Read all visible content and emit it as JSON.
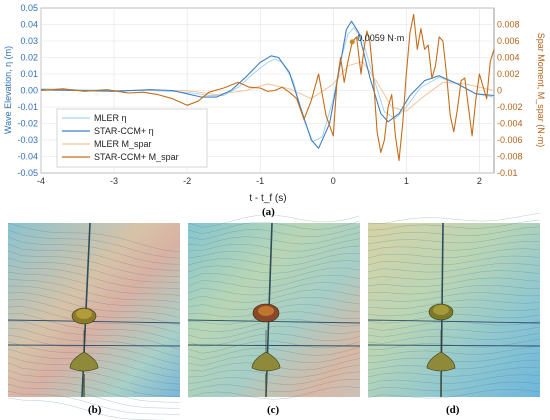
{
  "panel_labels": {
    "a": "(a)",
    "b": "(b)",
    "c": "(c)",
    "d": "(d)"
  },
  "chart_data": {
    "type": "line",
    "xlabel": "t - t_f (s)",
    "ylabel_left": "Wave Elevation, η (m)",
    "ylabel_right": "Spar Moment, M_spar (N·m)",
    "xlim": [
      -4,
      2.2
    ],
    "ylim_left": [
      -0.05,
      0.05
    ],
    "ylim_right": [
      -0.01,
      0.01
    ],
    "xticks": [
      -4,
      -3,
      -2,
      -1,
      0,
      1,
      2
    ],
    "yticks_left": [
      -0.05,
      -0.04,
      -0.03,
      -0.02,
      -0.01,
      0,
      0.01,
      0.02,
      0.03,
      0.04,
      0.05
    ],
    "yticks_right": [
      -0.01,
      -0.008,
      -0.006,
      -0.004,
      -0.002,
      0,
      0.002,
      0.004,
      0.006,
      0.008
    ],
    "grid": true,
    "legend_position": "lower-left",
    "annotation": {
      "text": "0.0059 N·m",
      "x": 0.26,
      "y_right": 0.0059
    },
    "series": [
      {
        "name": "MLER η",
        "axis": "left",
        "color": "#a9d3ee",
        "x": [
          -4,
          -3.5,
          -3,
          -2.5,
          -2,
          -1.7,
          -1.5,
          -1.3,
          -1.1,
          -0.9,
          -0.8,
          -0.7,
          -0.55,
          -0.4,
          -0.28,
          -0.15,
          0,
          0.1,
          0.2,
          0.28,
          0.4,
          0.55,
          0.7,
          0.85,
          1.0,
          1.2,
          1.45,
          1.7,
          1.95,
          2.2
        ],
        "y": [
          0.001,
          0.0005,
          0,
          0,
          -0.001,
          -0.003,
          -0.003,
          0.002,
          0.01,
          0.017,
          0.019,
          0.017,
          0.006,
          -0.018,
          -0.031,
          -0.028,
          -0.005,
          0.018,
          0.034,
          0.038,
          0.031,
          0.008,
          -0.013,
          -0.017,
          -0.01,
          0.002,
          0.008,
          0.004,
          -0.002,
          -0.004
        ]
      },
      {
        "name": "STAR-CCM+ η",
        "axis": "left",
        "color": "#3f7fc4",
        "x": [
          -4,
          -3.5,
          -3,
          -2.5,
          -2.2,
          -2,
          -1.8,
          -1.6,
          -1.4,
          -1.2,
          -1.0,
          -0.85,
          -0.75,
          -0.6,
          -0.45,
          -0.3,
          -0.2,
          -0.05,
          0.08,
          0.18,
          0.25,
          0.35,
          0.5,
          0.65,
          0.75,
          0.9,
          1.05,
          1.25,
          1.45,
          1.7,
          1.95,
          2.2
        ],
        "y": [
          0.0005,
          0,
          -0.0005,
          0.0005,
          0,
          -0.002,
          -0.004,
          -0.004,
          0,
          0.008,
          0.017,
          0.021,
          0.02,
          0.011,
          -0.01,
          -0.03,
          -0.035,
          -0.02,
          0.012,
          0.037,
          0.042,
          0.035,
          0.008,
          -0.014,
          -0.019,
          -0.014,
          -0.003,
          0.006,
          0.009,
          0.004,
          -0.002,
          -0.003
        ]
      },
      {
        "name": "MLER M_spar",
        "axis": "right",
        "color": "#f3c59a",
        "x": [
          -4,
          -3,
          -2,
          -1.6,
          -1.2,
          -0.9,
          -0.6,
          -0.3,
          0,
          0.2,
          0.4,
          0.6,
          0.8,
          1.0,
          1.2,
          1.5,
          1.8,
          2.2
        ],
        "y": [
          0,
          0,
          0,
          -0.0005,
          0,
          0.0008,
          0.0002,
          -0.001,
          0.0008,
          0.003,
          0.0035,
          0.001,
          -0.002,
          -0.0025,
          -0.001,
          0.001,
          0.0008,
          0
        ]
      },
      {
        "name": "STAR-CCM+ M_spar",
        "axis": "right",
        "color": "#c46d1b",
        "x": [
          -4,
          -3.7,
          -3.4,
          -3.1,
          -2.8,
          -2.6,
          -2.4,
          -2.2,
          -2.0,
          -1.85,
          -1.7,
          -1.5,
          -1.3,
          -1.15,
          -1.0,
          -0.9,
          -0.8,
          -0.7,
          -0.6,
          -0.5,
          -0.4,
          -0.3,
          -0.2,
          -0.1,
          0,
          0.05,
          0.1,
          0.15,
          0.2,
          0.26,
          0.32,
          0.38,
          0.42,
          0.46,
          0.5,
          0.55,
          0.6,
          0.65,
          0.7,
          0.75,
          0.8,
          0.85,
          0.9,
          0.95,
          1.0,
          1.05,
          1.1,
          1.15,
          1.2,
          1.25,
          1.3,
          1.35,
          1.4,
          1.45,
          1.5,
          1.55,
          1.6,
          1.65,
          1.7,
          1.75,
          1.8,
          1.85,
          1.9,
          1.95,
          2.0,
          2.05,
          2.1,
          2.15,
          2.2
        ],
        "y": [
          0,
          0.0002,
          -0.0001,
          0.0001,
          -0.0003,
          -0.0002,
          -0.0005,
          -0.001,
          -0.0018,
          -0.0013,
          -0.0002,
          0.0003,
          0.001,
          0.0004,
          0.0003,
          -0.0001,
          0,
          0.0004,
          -0.0002,
          -0.001,
          -0.0035,
          -0.0012,
          0.002,
          -0.003,
          -0.0055,
          0.001,
          0.004,
          0.001,
          0.0035,
          0.0059,
          0.0065,
          0.002,
          0.005,
          0.0072,
          0.006,
          0.0015,
          -0.005,
          -0.0075,
          -0.006,
          -0.002,
          -0.0005,
          -0.0055,
          -0.0085,
          -0.004,
          0.002,
          0.007,
          0.0092,
          0.005,
          0.0075,
          0.005,
          0.0055,
          0.0015,
          0.003,
          0.0065,
          0.006,
          0.002,
          -0.003,
          -0.005,
          -0.0022,
          0.0012,
          0.0015,
          -0.002,
          -0.0055,
          -0.0012,
          0.002,
          0.0005,
          -0.001,
          0.0035,
          0.005
        ]
      }
    ]
  },
  "images": [
    {
      "id": "b",
      "caption": "(b)",
      "surface": "wave surface with contour lines and spar buoy"
    },
    {
      "id": "c",
      "caption": "(c)",
      "surface": "wave surface with contour lines and spar buoy"
    },
    {
      "id": "d",
      "caption": "(d)",
      "surface": "wave surface with contour lines and spar buoy"
    }
  ]
}
